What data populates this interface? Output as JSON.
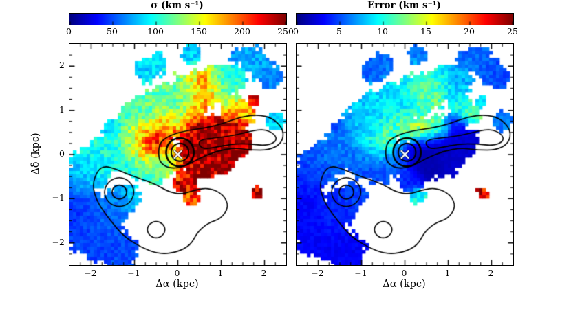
{
  "figure": {
    "background": "#ffffff",
    "contour_color": "#000000",
    "marker_color": "#ffffff"
  },
  "chart_data": [
    {
      "type": "heatmap",
      "title": "σ (km s⁻¹)",
      "xlabel": "Δα (kpc)",
      "ylabel": "Δδ (kpc)",
      "xlim": [
        -2.5,
        2.5
      ],
      "ylim": [
        -2.5,
        2.5
      ],
      "vmin": 0,
      "vmax": 250,
      "colormap": "jet",
      "colorbar_ticks": [
        "0",
        "50",
        "100",
        "150",
        "200",
        "250"
      ],
      "xtick_values": [
        -2,
        -1,
        0,
        1,
        2
      ],
      "xtick_labels": [
        "−2",
        "−1",
        "0",
        "1",
        "2"
      ],
      "ytick_values": [
        -2,
        -1,
        0,
        1,
        2
      ],
      "ytick_labels": [
        "−2",
        "−1",
        "0",
        "1",
        "2"
      ],
      "marker": {
        "x": 0,
        "y": 0,
        "symbol": "x",
        "color": "#ffffff"
      },
      "blobs": [
        [
          -2.25,
          -0.55,
          0.25,
          70
        ],
        [
          -2.0,
          -0.3,
          0.3,
          90
        ],
        [
          -1.7,
          -0.05,
          0.3,
          100
        ],
        [
          -1.4,
          0.2,
          0.3,
          105
        ],
        [
          -1.1,
          0.5,
          0.32,
          100
        ],
        [
          -0.8,
          0.78,
          0.32,
          115
        ],
        [
          -0.5,
          1.0,
          0.33,
          120
        ],
        [
          -0.15,
          1.15,
          0.33,
          112
        ],
        [
          0.2,
          1.3,
          0.33,
          120
        ],
        [
          0.55,
          1.45,
          0.28,
          150
        ],
        [
          0.9,
          1.6,
          0.28,
          120
        ],
        [
          1.2,
          1.72,
          0.24,
          95
        ],
        [
          -0.55,
          0.35,
          0.28,
          248
        ],
        [
          -0.78,
          0.15,
          0.22,
          230
        ],
        [
          -0.35,
          0.55,
          0.2,
          225
        ],
        [
          -0.95,
          0.45,
          0.2,
          185
        ],
        [
          0.35,
          0.05,
          0.25,
          250
        ],
        [
          0.7,
          0.1,
          0.28,
          250
        ],
        [
          1.05,
          0.15,
          0.28,
          250
        ],
        [
          1.35,
          0.3,
          0.22,
          245
        ],
        [
          0.5,
          -0.25,
          0.22,
          242
        ],
        [
          0.9,
          -0.15,
          0.22,
          245
        ],
        [
          0.45,
          0.55,
          0.22,
          250
        ],
        [
          0.8,
          0.6,
          0.22,
          246
        ],
        [
          1.15,
          0.65,
          0.18,
          232
        ],
        [
          0.55,
          1.35,
          0.18,
          240
        ],
        [
          0.62,
          1.62,
          0.16,
          232
        ],
        [
          0.42,
          1.08,
          0.16,
          205
        ],
        [
          1.5,
          0.9,
          0.18,
          180
        ],
        [
          1.3,
          1.1,
          0.18,
          150
        ],
        [
          -0.2,
          0.85,
          0.18,
          162
        ],
        [
          0.1,
          0.6,
          0.18,
          172
        ],
        [
          -0.2,
          -0.1,
          0.24,
          122
        ],
        [
          -0.6,
          -0.28,
          0.24,
          108
        ],
        [
          -1.0,
          -0.15,
          0.24,
          98
        ],
        [
          0.15,
          -0.6,
          0.18,
          235
        ],
        [
          0.3,
          -0.95,
          0.13,
          200
        ],
        [
          -2.2,
          -1.05,
          0.25,
          45
        ],
        [
          -2.32,
          -1.5,
          0.25,
          40
        ],
        [
          -2.1,
          -1.85,
          0.28,
          50
        ],
        [
          -1.75,
          -1.45,
          0.3,
          55
        ],
        [
          -1.45,
          -1.15,
          0.25,
          62
        ],
        [
          -1.8,
          -2.05,
          0.25,
          45
        ],
        [
          -1.35,
          -2.15,
          0.28,
          50
        ],
        [
          -1.2,
          -0.95,
          0.2,
          80
        ],
        [
          -1.55,
          0.6,
          0.11,
          60
        ],
        [
          -0.7,
          1.9,
          0.18,
          80
        ],
        [
          -0.5,
          2.05,
          0.16,
          90
        ],
        [
          0.3,
          2.25,
          0.14,
          80
        ],
        [
          1.7,
          2.15,
          0.19,
          75
        ],
        [
          1.95,
          1.95,
          0.2,
          70
        ],
        [
          2.15,
          1.75,
          0.18,
          62
        ],
        [
          1.35,
          2.2,
          0.11,
          60
        ],
        [
          2.25,
          0.75,
          0.14,
          85
        ],
        [
          1.75,
          1.2,
          0.09,
          240
        ],
        [
          1.8,
          -0.88,
          0.09,
          238
        ]
      ]
    },
    {
      "type": "heatmap",
      "title": "Error (km s⁻¹)",
      "xlabel": "Δα (kpc)",
      "ylabel": "",
      "xlim": [
        -2.5,
        2.5
      ],
      "ylim": [
        -2.5,
        2.5
      ],
      "vmin": 0,
      "vmax": 25,
      "colormap": "jet",
      "colorbar_ticks": [
        "0",
        "5",
        "10",
        "15",
        "20",
        "25"
      ],
      "xtick_values": [
        -2,
        -1,
        0,
        1,
        2
      ],
      "xtick_labels": [
        "−2",
        "−1",
        "0",
        "1",
        "2"
      ],
      "ytick_values": [
        -2,
        -1,
        0,
        1,
        2
      ],
      "ytick_labels": [],
      "marker": {
        "x": 0,
        "y": 0,
        "symbol": "x",
        "color": "#ffffff"
      },
      "blobs": [
        [
          -2.25,
          -0.55,
          0.25,
          4
        ],
        [
          -2.0,
          -0.3,
          0.3,
          5
        ],
        [
          -1.7,
          -0.05,
          0.3,
          6
        ],
        [
          -1.4,
          0.2,
          0.3,
          6
        ],
        [
          -1.1,
          0.5,
          0.32,
          7
        ],
        [
          -0.8,
          0.78,
          0.32,
          8
        ],
        [
          -0.5,
          1.0,
          0.33,
          9
        ],
        [
          -0.15,
          1.15,
          0.33,
          8
        ],
        [
          0.2,
          1.3,
          0.33,
          10
        ],
        [
          0.55,
          1.45,
          0.28,
          12
        ],
        [
          0.9,
          1.6,
          0.28,
          9
        ],
        [
          1.2,
          1.72,
          0.24,
          7
        ],
        [
          -0.55,
          0.35,
          0.24,
          14
        ],
        [
          -0.78,
          0.15,
          0.2,
          10
        ],
        [
          -0.35,
          0.55,
          0.18,
          12
        ],
        [
          -0.95,
          0.45,
          0.18,
          9
        ],
        [
          0.1,
          0.6,
          0.18,
          15
        ],
        [
          0.45,
          0.55,
          0.2,
          16
        ],
        [
          0.8,
          0.6,
          0.18,
          13
        ],
        [
          -0.2,
          0.85,
          0.18,
          12
        ],
        [
          0.55,
          1.35,
          0.18,
          14
        ],
        [
          0.62,
          1.62,
          0.15,
          11
        ],
        [
          1.3,
          1.1,
          0.18,
          10
        ],
        [
          1.5,
          0.9,
          0.16,
          12
        ],
        [
          0.35,
          0.05,
          0.25,
          1
        ],
        [
          0.7,
          0.1,
          0.28,
          1
        ],
        [
          1.05,
          0.15,
          0.28,
          2
        ],
        [
          1.35,
          0.3,
          0.22,
          2
        ],
        [
          0.5,
          -0.25,
          0.22,
          1
        ],
        [
          0.9,
          -0.15,
          0.22,
          2
        ],
        [
          1.15,
          0.65,
          0.18,
          3
        ],
        [
          -0.2,
          -0.1,
          0.24,
          6
        ],
        [
          -0.6,
          -0.28,
          0.24,
          5
        ],
        [
          -1.0,
          -0.15,
          0.24,
          5
        ],
        [
          0.15,
          -0.6,
          0.18,
          4
        ],
        [
          0.3,
          -0.95,
          0.12,
          10
        ],
        [
          -2.2,
          -1.05,
          0.25,
          3
        ],
        [
          -2.32,
          -1.5,
          0.25,
          3
        ],
        [
          -2.1,
          -1.85,
          0.28,
          3
        ],
        [
          -1.75,
          -1.45,
          0.3,
          4
        ],
        [
          -1.45,
          -1.15,
          0.25,
          4
        ],
        [
          -1.8,
          -2.05,
          0.25,
          3
        ],
        [
          -1.35,
          -2.15,
          0.28,
          3
        ],
        [
          -1.2,
          -0.95,
          0.2,
          5
        ],
        [
          -1.55,
          0.6,
          0.11,
          4
        ],
        [
          -0.7,
          1.9,
          0.18,
          5
        ],
        [
          -0.5,
          2.05,
          0.16,
          6
        ],
        [
          0.3,
          2.25,
          0.14,
          6
        ],
        [
          1.7,
          2.15,
          0.19,
          6
        ],
        [
          1.95,
          1.95,
          0.2,
          5
        ],
        [
          2.15,
          1.75,
          0.18,
          5
        ],
        [
          1.35,
          2.2,
          0.11,
          5
        ],
        [
          2.25,
          0.75,
          0.14,
          6
        ],
        [
          1.75,
          1.2,
          0.09,
          8
        ],
        [
          1.8,
          -0.88,
          0.09,
          22
        ]
      ]
    }
  ],
  "contours": {
    "color": "#000000",
    "paths": [
      {
        "lw": 2.6,
        "pts": [
          [
            0.38,
            0.05
          ],
          [
            0.34,
            0.22
          ],
          [
            0.22,
            0.34
          ],
          [
            0.05,
            0.38
          ],
          [
            -0.12,
            0.34
          ],
          [
            -0.24,
            0.22
          ],
          [
            -0.28,
            0.05
          ],
          [
            -0.24,
            -0.12
          ],
          [
            -0.12,
            -0.24
          ],
          [
            0.05,
            -0.28
          ],
          [
            0.22,
            -0.24
          ],
          [
            0.34,
            -0.12
          ]
        ]
      },
      {
        "lw": 2.0,
        "pts": [
          [
            0.26,
            0.05
          ],
          [
            0.23,
            0.16
          ],
          [
            0.16,
            0.23
          ],
          [
            0.05,
            0.26
          ],
          [
            -0.06,
            0.23
          ],
          [
            -0.13,
            0.16
          ],
          [
            -0.16,
            0.05
          ],
          [
            -0.13,
            -0.06
          ],
          [
            -0.06,
            -0.13
          ],
          [
            0.05,
            -0.16
          ],
          [
            0.16,
            -0.13
          ],
          [
            0.23,
            -0.06
          ]
        ]
      },
      {
        "lw": 1.6,
        "pts": [
          [
            -0.45,
            0.0
          ],
          [
            -0.42,
            0.28
          ],
          [
            -0.15,
            0.45
          ],
          [
            0.25,
            0.55
          ],
          [
            0.65,
            0.6
          ],
          [
            1.05,
            0.7
          ],
          [
            1.45,
            0.85
          ],
          [
            1.85,
            0.9
          ],
          [
            2.2,
            0.82
          ],
          [
            2.45,
            0.55
          ],
          [
            2.4,
            0.25
          ],
          [
            2.1,
            0.1
          ],
          [
            1.7,
            0.1
          ],
          [
            1.3,
            0.15
          ],
          [
            0.9,
            0.08
          ],
          [
            0.5,
            -0.08
          ],
          [
            0.15,
            -0.28
          ],
          [
            -0.18,
            -0.32
          ],
          [
            -0.4,
            -0.2
          ]
        ]
      },
      {
        "lw": 1.6,
        "pts": [
          [
            0.45,
            0.32
          ],
          [
            0.85,
            0.38
          ],
          [
            1.25,
            0.42
          ],
          [
            1.65,
            0.52
          ],
          [
            2.0,
            0.58
          ],
          [
            2.25,
            0.45
          ],
          [
            2.28,
            0.3
          ],
          [
            2.05,
            0.2
          ],
          [
            1.65,
            0.24
          ],
          [
            1.25,
            0.24
          ],
          [
            0.85,
            0.16
          ],
          [
            0.55,
            0.12
          ]
        ]
      },
      {
        "lw": 1.6,
        "pts": [
          [
            -1.85,
            -0.35
          ],
          [
            -1.98,
            -0.7
          ],
          [
            -1.85,
            -1.1
          ],
          [
            -1.55,
            -1.5
          ],
          [
            -1.25,
            -1.85
          ],
          [
            -0.85,
            -2.1
          ],
          [
            -0.45,
            -2.25
          ],
          [
            -0.05,
            -2.22
          ],
          [
            0.3,
            -2.05
          ],
          [
            0.45,
            -1.75
          ],
          [
            0.7,
            -1.55
          ],
          [
            1.0,
            -1.45
          ],
          [
            1.18,
            -1.18
          ],
          [
            1.05,
            -0.9
          ],
          [
            0.72,
            -0.75
          ],
          [
            0.4,
            -0.8
          ],
          [
            0.1,
            -0.9
          ],
          [
            -0.2,
            -0.85
          ],
          [
            -0.5,
            -0.68
          ],
          [
            -0.85,
            -0.55
          ],
          [
            -1.15,
            -0.45
          ],
          [
            -1.45,
            -0.32
          ],
          [
            -1.68,
            -0.26
          ]
        ]
      },
      {
        "lw": 1.6,
        "pts": [
          [
            -0.99,
            -0.85
          ],
          [
            -1.1,
            -0.6
          ],
          [
            -1.35,
            -0.5
          ],
          [
            -1.6,
            -0.6
          ],
          [
            -1.72,
            -0.85
          ],
          [
            -1.6,
            -1.1
          ],
          [
            -1.35,
            -1.2
          ],
          [
            -1.1,
            -1.1
          ]
        ]
      },
      {
        "lw": 1.6,
        "pts": [
          [
            -1.17,
            -0.85
          ],
          [
            -1.22,
            -0.73
          ],
          [
            -1.35,
            -0.68
          ],
          [
            -1.48,
            -0.73
          ],
          [
            -1.53,
            -0.85
          ],
          [
            -1.48,
            -0.97
          ],
          [
            -1.35,
            -1.02
          ],
          [
            -1.22,
            -0.97
          ]
        ]
      },
      {
        "lw": 1.6,
        "pts": [
          [
            -0.28,
            -1.7
          ],
          [
            -0.35,
            -1.56
          ],
          [
            -0.5,
            -1.5
          ],
          [
            -0.65,
            -1.56
          ],
          [
            -0.72,
            -1.7
          ],
          [
            -0.65,
            -1.84
          ],
          [
            -0.5,
            -1.9
          ],
          [
            -0.35,
            -1.84
          ]
        ]
      }
    ]
  }
}
